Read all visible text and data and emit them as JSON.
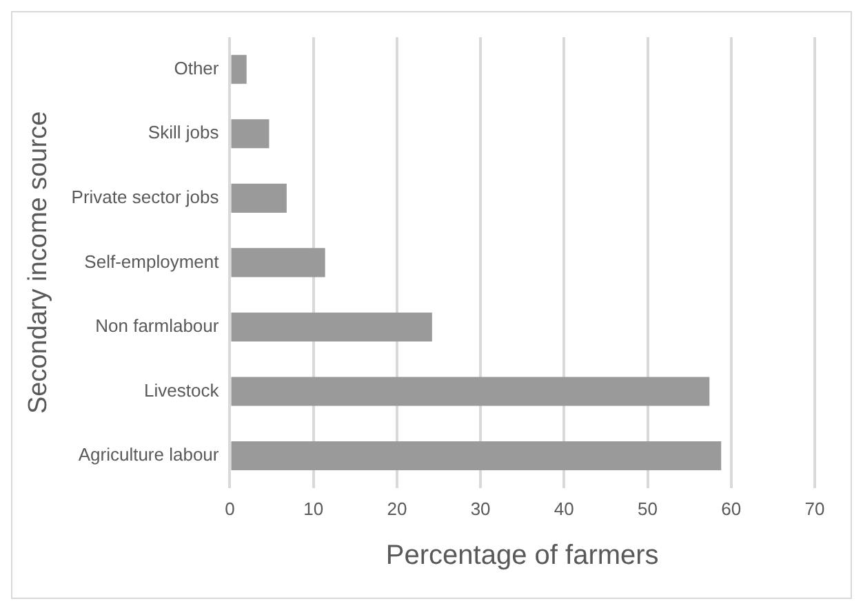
{
  "chart_data": {
    "type": "bar",
    "orientation": "horizontal",
    "xlabel": "Percentage of farmers",
    "ylabel": "Secondary income source",
    "categories": [
      "Other",
      "Skill jobs",
      "Private sector jobs",
      "Self-employment",
      "Non farmlabour",
      "Livestock",
      "Agriculture labour"
    ],
    "values": [
      2.0,
      4.7,
      6.8,
      11.4,
      24.2,
      57.4,
      58.8
    ],
    "color": "#9a9a9a",
    "xlim": [
      0,
      70
    ],
    "xticks": [
      0,
      10,
      20,
      30,
      40,
      50,
      60,
      70
    ],
    "grid": "x",
    "legend": false
  }
}
